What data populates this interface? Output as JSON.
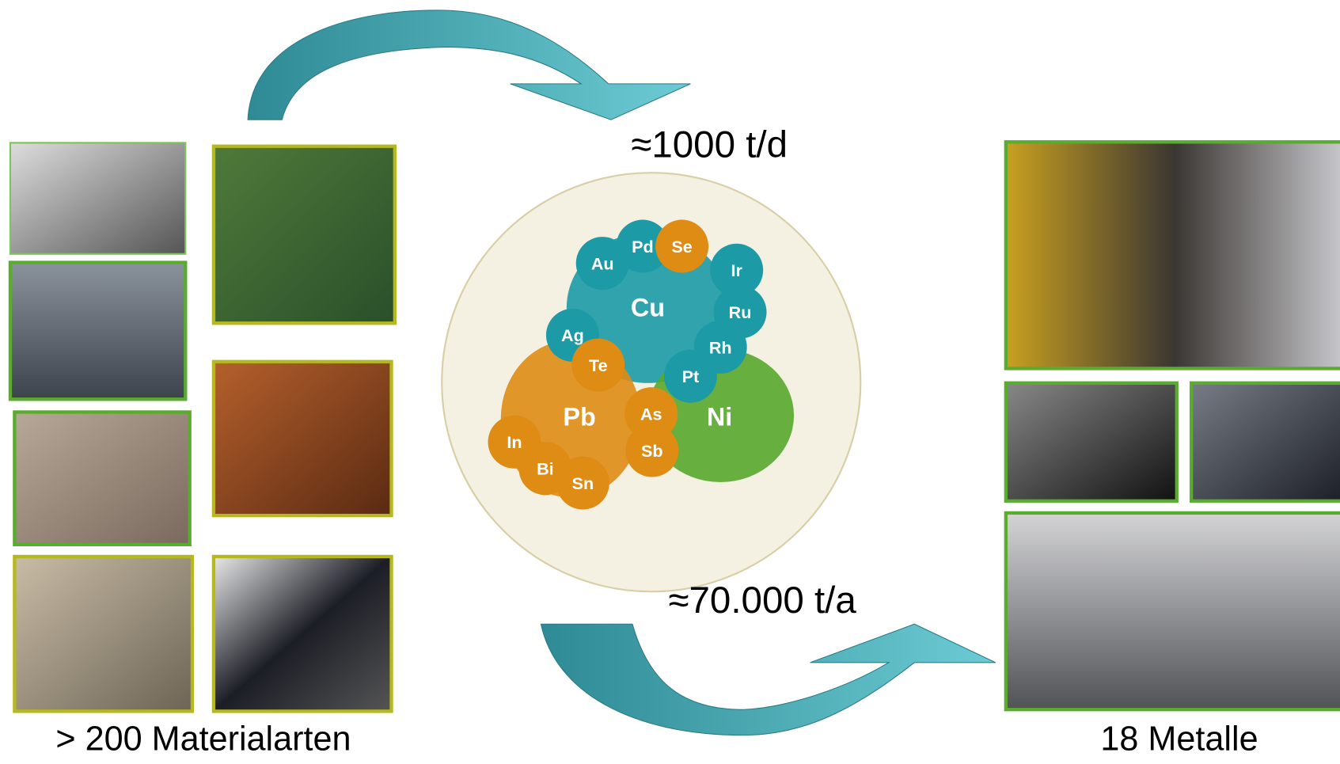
{
  "flow": {
    "input_rate": "≈1000 t/d",
    "output_rate": "≈70.000 t/a",
    "input_label": "> 200 Materialarten",
    "output_label": "18 Metalle"
  },
  "carriers": [
    {
      "label": "Cu",
      "color": "#1c9aa6"
    },
    {
      "label": "Pb",
      "color": "#de8c14"
    },
    {
      "label": "Ni",
      "color": "#58a92e"
    }
  ],
  "elements": [
    {
      "label": "Au",
      "color": "#1c9aa6"
    },
    {
      "label": "Pd",
      "color": "#1c9aa6"
    },
    {
      "label": "Se",
      "color": "#de8c14"
    },
    {
      "label": "Ir",
      "color": "#1c9aa6"
    },
    {
      "label": "Ru",
      "color": "#1c9aa6"
    },
    {
      "label": "Rh",
      "color": "#1c9aa6"
    },
    {
      "label": "Pt",
      "color": "#1c9aa6"
    },
    {
      "label": "Ag",
      "color": "#1c9aa6"
    },
    {
      "label": "Te",
      "color": "#de8c14"
    },
    {
      "label": "As",
      "color": "#de8c14"
    },
    {
      "label": "Sb",
      "color": "#de8c14"
    },
    {
      "label": "In",
      "color": "#de8c14"
    },
    {
      "label": "Bi",
      "color": "#de8c14"
    },
    {
      "label": "Sn",
      "color": "#de8c14"
    }
  ]
}
